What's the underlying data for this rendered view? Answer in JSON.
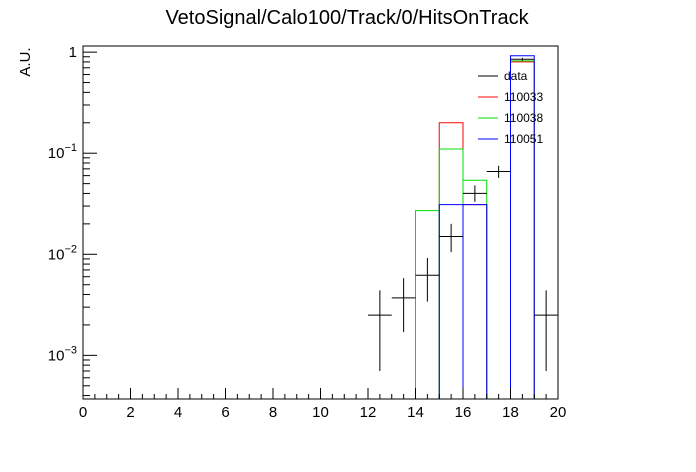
{
  "chart_data": {
    "type": "histogram",
    "title": "VetoSignal/Calo100/Track/0/HitsOnTrack",
    "xlabel": "",
    "ylabel": "A.U.",
    "xlim": [
      0,
      20
    ],
    "ylim": [
      0.00037,
      1.15
    ],
    "yscale": "log",
    "x_ticks": [
      "0",
      "2",
      "4",
      "6",
      "8",
      "10",
      "12",
      "14",
      "16",
      "18",
      "20"
    ],
    "y_ticks": [
      {
        "value": 1,
        "base": "1",
        "exp": ""
      },
      {
        "value": 0.1,
        "base": "10",
        "exp": "−1"
      },
      {
        "value": 0.01,
        "base": "10",
        "exp": "−2"
      },
      {
        "value": 0.001,
        "base": "10",
        "exp": "−3"
      }
    ],
    "grid": false,
    "legend_position": "top-right",
    "data": {
      "name": "data",
      "color": "#000000",
      "points": [
        {
          "x": 12.5,
          "y": 0.0025,
          "ylo": 0.0007,
          "yhi": 0.0044
        },
        {
          "x": 13.5,
          "y": 0.0037,
          "ylo": 0.0017,
          "yhi": 0.0058
        },
        {
          "x": 14.5,
          "y": 0.0062,
          "ylo": 0.0034,
          "yhi": 0.0092
        },
        {
          "x": 15.5,
          "y": 0.015,
          "ylo": 0.0105,
          "yhi": 0.02
        },
        {
          "x": 16.5,
          "y": 0.04,
          "ylo": 0.033,
          "yhi": 0.048
        },
        {
          "x": 17.5,
          "y": 0.066,
          "ylo": 0.057,
          "yhi": 0.075
        },
        {
          "x": 18.5,
          "y": 0.85,
          "ylo": 0.82,
          "yhi": 0.88
        },
        {
          "x": 19.5,
          "y": 0.0025,
          "ylo": 0.0007,
          "yhi": 0.0044
        }
      ]
    },
    "series": [
      {
        "name": "110033",
        "color": "#ff0000",
        "bins": [
          {
            "lo": 15,
            "hi": 16,
            "y": 0.2
          },
          {
            "lo": 16,
            "hi": 17,
            "y": 0.031
          },
          {
            "lo": 18,
            "hi": 19,
            "y": 0.8
          }
        ]
      },
      {
        "name": "110038",
        "color": "#00dd00",
        "bins": [
          {
            "lo": 14,
            "hi": 15,
            "y": 0.027
          },
          {
            "lo": 15,
            "hi": 16,
            "y": 0.11
          },
          {
            "lo": 16,
            "hi": 17,
            "y": 0.054
          },
          {
            "lo": 18,
            "hi": 19,
            "y": 0.82
          }
        ]
      },
      {
        "name": "110051",
        "color": "#0000ff",
        "bins": [
          {
            "lo": 15,
            "hi": 16,
            "y": 0.031
          },
          {
            "lo": 16,
            "hi": 17,
            "y": 0.031
          },
          {
            "lo": 18,
            "hi": 19,
            "y": 0.92
          }
        ]
      }
    ]
  }
}
